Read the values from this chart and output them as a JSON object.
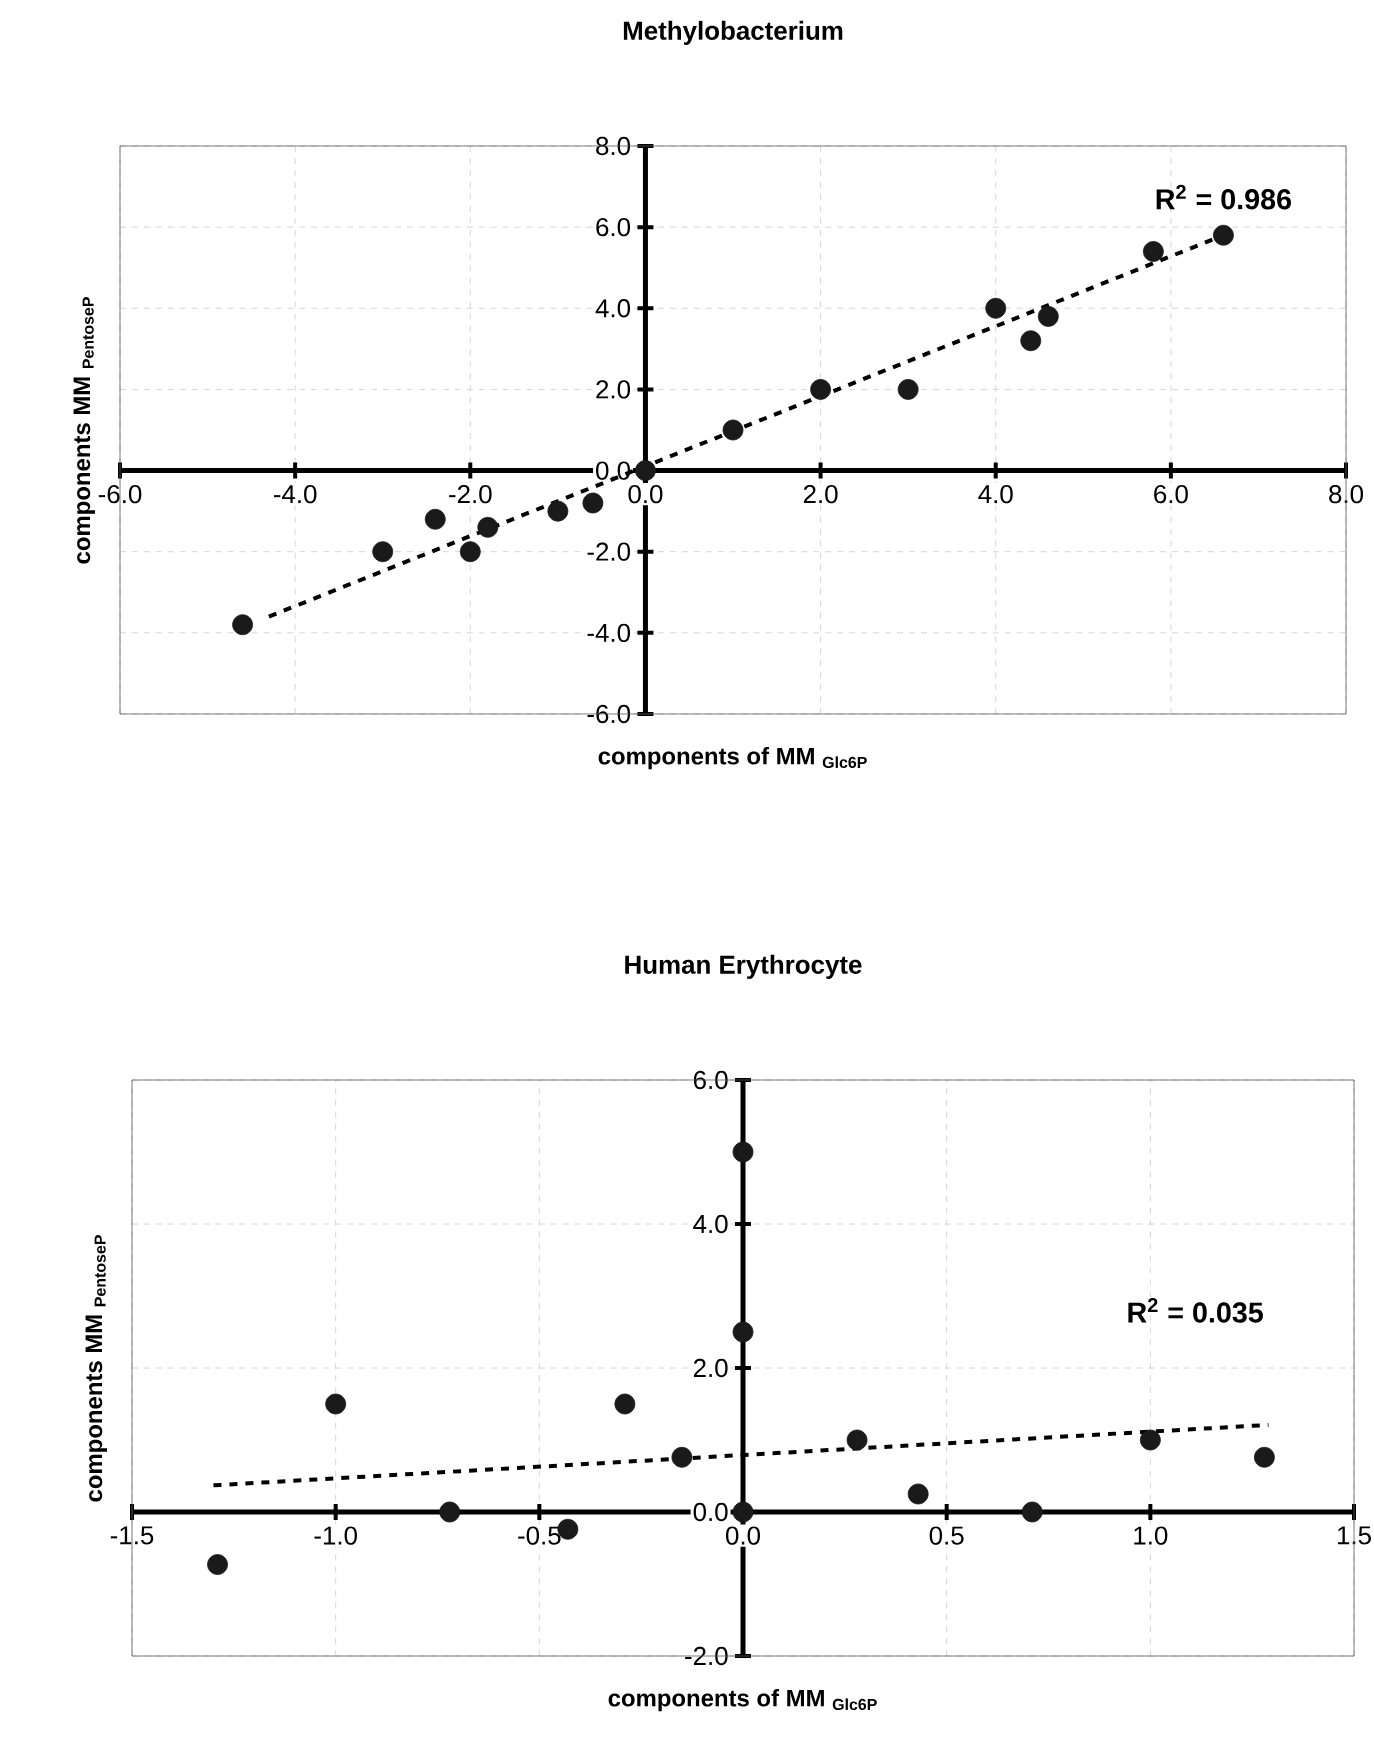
{
  "chart_data": [
    {
      "type": "scatter",
      "title": "Methylobacterium",
      "xlabel": "components of MM $_{Glc6P}$",
      "ylabel": "components MM $_{PentoseP}$",
      "annotations": [
        "R$^{2}$ = 0.986"
      ],
      "xlim": [
        -6,
        8
      ],
      "ylim": [
        -6,
        8
      ],
      "grid": true,
      "xticks": [
        {
          "value": -6,
          "label": "-6.0"
        },
        {
          "value": -4,
          "label": "-4.0"
        },
        {
          "value": -2,
          "label": "-2.0"
        },
        {
          "value": 0,
          "label": "0.0"
        },
        {
          "value": 2,
          "label": "2.0"
        },
        {
          "value": 4,
          "label": "4.0"
        },
        {
          "value": 6,
          "label": "6.0"
        },
        {
          "value": 8,
          "label": "8.0"
        }
      ],
      "yticks": [
        {
          "value": -6,
          "label": "-6.0"
        },
        {
          "value": -4,
          "label": "-4.0"
        },
        {
          "value": -2,
          "label": "-2.0"
        },
        {
          "value": 0,
          "label": "0.0"
        },
        {
          "value": 2,
          "label": "2.0"
        },
        {
          "value": 4,
          "label": "4.0"
        },
        {
          "value": 6,
          "label": "6.0"
        },
        {
          "value": 8,
          "label": "8.0"
        }
      ],
      "series": [
        {
          "type": "scatter",
          "marker": "circle",
          "color": "#1a1a1a",
          "x": [
            -4.6,
            -3.0,
            -2.4,
            -2.0,
            -1.8,
            -1.0,
            -0.6,
            0,
            1.0,
            2.0,
            3.0,
            4.0,
            4.4,
            4.6,
            5.8,
            6.6
          ],
          "values": [
            -3.8,
            -2.0,
            -1.2,
            -2.0,
            -1.4,
            -1.0,
            -0.8,
            0,
            1.0,
            2.0,
            2.0,
            4.0,
            3.2,
            3.8,
            5.4,
            5.8
          ]
        },
        {
          "type": "line",
          "marker": "none",
          "line_style": "dashed",
          "color": "#000000",
          "x": [
            -4.3,
            6.6
          ],
          "values": [
            -3.6,
            5.8
          ]
        }
      ]
    },
    {
      "type": "scatter",
      "title": "Human Erythrocyte",
      "xlabel": "components of MM $_{Glc6P}$",
      "ylabel": "components MM $_{PentoseP}$",
      "annotations": [
        "R$^{2}$ = 0.035"
      ],
      "xlim": [
        -1.5,
        1.5
      ],
      "ylim": [
        -2,
        6
      ],
      "grid": true,
      "xticks": [
        {
          "value": -1.5,
          "label": "-1.5"
        },
        {
          "value": -1,
          "label": "-1.0"
        },
        {
          "value": -0.5,
          "label": "-0.5"
        },
        {
          "value": 0,
          "label": "0.0"
        },
        {
          "value": 0.5,
          "label": "0.5"
        },
        {
          "value": 1,
          "label": "1.0"
        },
        {
          "value": 1.5,
          "label": "1.5"
        }
      ],
      "yticks": [
        {
          "value": -2,
          "label": "-2.0"
        },
        {
          "value": 0,
          "label": "0.0"
        },
        {
          "value": 2,
          "label": "2.0"
        },
        {
          "value": 4,
          "label": "4.0"
        },
        {
          "value": 6,
          "label": "6.0"
        }
      ],
      "series": [
        {
          "type": "scatter",
          "marker": "circle",
          "color": "#1a1a1a",
          "x": [
            -1.29,
            -1.0,
            -0.72,
            -0.43,
            -0.29,
            -0.15,
            0,
            0,
            0,
            0.28,
            0.43,
            0.71,
            1.0,
            1.28
          ],
          "values": [
            -0.73,
            1.5,
            0,
            -0.24,
            1.5,
            0.76,
            5.0,
            2.5,
            0,
            1.0,
            0.25,
            0,
            1.0,
            0.76
          ]
        },
        {
          "type": "line",
          "marker": "none",
          "line_style": "dashed",
          "color": "#000000",
          "x": [
            -1.3,
            1.29
          ],
          "values": [
            0.37,
            1.21
          ]
        }
      ]
    }
  ]
}
